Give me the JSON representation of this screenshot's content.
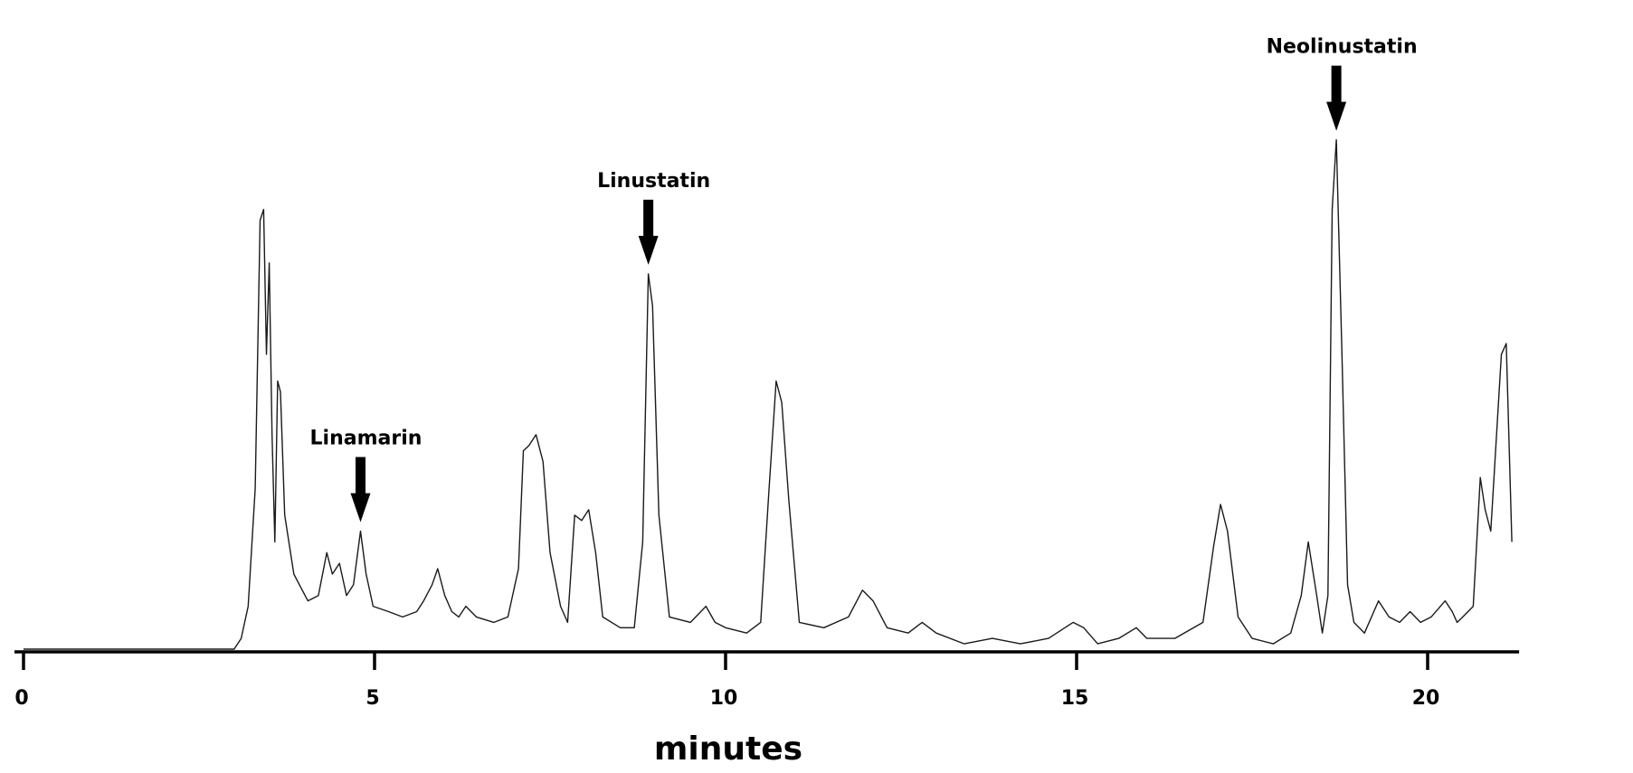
{
  "chart_data": {
    "type": "line",
    "title": "",
    "xlabel": "minutes",
    "ylabel": "",
    "xlim": [
      0,
      21.2
    ],
    "ylim": [
      0,
      100
    ],
    "grid": false,
    "legend": "none",
    "x_ticks": [
      0,
      5,
      10,
      15,
      20
    ],
    "x_tick_labels": [
      "0",
      "5",
      "10",
      "15",
      "20"
    ],
    "colors": {
      "trace": "#1a1a1a",
      "axis": "#000000"
    },
    "series": [
      {
        "values": [
          [
            0,
            0
          ],
          [
            3.0,
            0
          ],
          [
            3.1,
            2
          ],
          [
            3.2,
            8
          ],
          [
            3.3,
            30
          ],
          [
            3.37,
            80
          ],
          [
            3.42,
            82
          ],
          [
            3.46,
            55
          ],
          [
            3.5,
            72
          ],
          [
            3.54,
            40
          ],
          [
            3.58,
            20
          ],
          [
            3.62,
            50
          ],
          [
            3.66,
            48
          ],
          [
            3.72,
            25
          ],
          [
            3.85,
            14
          ],
          [
            4.05,
            9
          ],
          [
            4.2,
            10
          ],
          [
            4.32,
            18
          ],
          [
            4.4,
            14
          ],
          [
            4.5,
            16
          ],
          [
            4.6,
            10
          ],
          [
            4.7,
            12
          ],
          [
            4.8,
            22
          ],
          [
            4.88,
            14
          ],
          [
            4.98,
            8
          ],
          [
            5.2,
            7
          ],
          [
            5.4,
            6
          ],
          [
            5.6,
            7
          ],
          [
            5.7,
            9
          ],
          [
            5.82,
            12
          ],
          [
            5.9,
            15
          ],
          [
            6.0,
            10
          ],
          [
            6.1,
            7
          ],
          [
            6.2,
            6
          ],
          [
            6.3,
            8
          ],
          [
            6.45,
            6
          ],
          [
            6.7,
            5
          ],
          [
            6.9,
            6
          ],
          [
            7.05,
            15
          ],
          [
            7.12,
            37
          ],
          [
            7.2,
            38
          ],
          [
            7.3,
            40
          ],
          [
            7.4,
            35
          ],
          [
            7.5,
            18
          ],
          [
            7.65,
            8
          ],
          [
            7.75,
            5
          ],
          [
            7.85,
            25
          ],
          [
            7.95,
            24
          ],
          [
            8.05,
            26
          ],
          [
            8.15,
            18
          ],
          [
            8.25,
            6
          ],
          [
            8.5,
            4
          ],
          [
            8.7,
            4
          ],
          [
            8.82,
            20
          ],
          [
            8.9,
            70
          ],
          [
            8.96,
            64
          ],
          [
            9.05,
            25
          ],
          [
            9.2,
            6
          ],
          [
            9.5,
            5
          ],
          [
            9.72,
            8
          ],
          [
            9.85,
            5
          ],
          [
            10.0,
            4
          ],
          [
            10.3,
            3
          ],
          [
            10.5,
            5
          ],
          [
            10.62,
            30
          ],
          [
            10.72,
            50
          ],
          [
            10.8,
            46
          ],
          [
            10.9,
            28
          ],
          [
            11.05,
            5
          ],
          [
            11.4,
            4
          ],
          [
            11.75,
            6
          ],
          [
            11.95,
            11
          ],
          [
            12.1,
            9
          ],
          [
            12.3,
            4
          ],
          [
            12.6,
            3
          ],
          [
            12.8,
            5
          ],
          [
            13.0,
            3
          ],
          [
            13.4,
            1
          ],
          [
            13.8,
            2
          ],
          [
            14.2,
            1
          ],
          [
            14.6,
            2
          ],
          [
            14.95,
            5
          ],
          [
            15.1,
            4
          ],
          [
            15.3,
            1
          ],
          [
            15.6,
            2
          ],
          [
            15.85,
            4
          ],
          [
            16.0,
            2
          ],
          [
            16.4,
            2
          ],
          [
            16.8,
            5
          ],
          [
            16.95,
            19
          ],
          [
            17.05,
            27
          ],
          [
            17.15,
            22
          ],
          [
            17.3,
            6
          ],
          [
            17.5,
            2
          ],
          [
            17.8,
            1
          ],
          [
            18.05,
            3
          ],
          [
            18.2,
            10
          ],
          [
            18.3,
            20
          ],
          [
            18.42,
            10
          ],
          [
            18.5,
            3
          ],
          [
            18.58,
            10
          ],
          [
            18.64,
            82
          ],
          [
            18.7,
            95
          ],
          [
            18.78,
            55
          ],
          [
            18.86,
            12
          ],
          [
            18.95,
            5
          ],
          [
            19.1,
            3
          ],
          [
            19.3,
            9
          ],
          [
            19.45,
            6
          ],
          [
            19.6,
            5
          ],
          [
            19.75,
            7
          ],
          [
            19.9,
            5
          ],
          [
            20.05,
            6
          ],
          [
            20.25,
            9
          ],
          [
            20.35,
            7
          ],
          [
            20.42,
            5
          ],
          [
            20.5,
            6
          ],
          [
            20.65,
            8
          ],
          [
            20.75,
            32
          ],
          [
            20.82,
            26
          ],
          [
            20.9,
            22
          ],
          [
            21.05,
            55
          ],
          [
            21.12,
            57
          ],
          [
            21.2,
            20
          ]
        ]
      }
    ],
    "annotations": [
      {
        "label": "Linamarin",
        "x": 4.8,
        "y": 22
      },
      {
        "label": "Linustatin",
        "x": 8.9,
        "y": 70
      },
      {
        "label": "Neolinustatin",
        "x": 18.7,
        "y": 95
      }
    ]
  }
}
